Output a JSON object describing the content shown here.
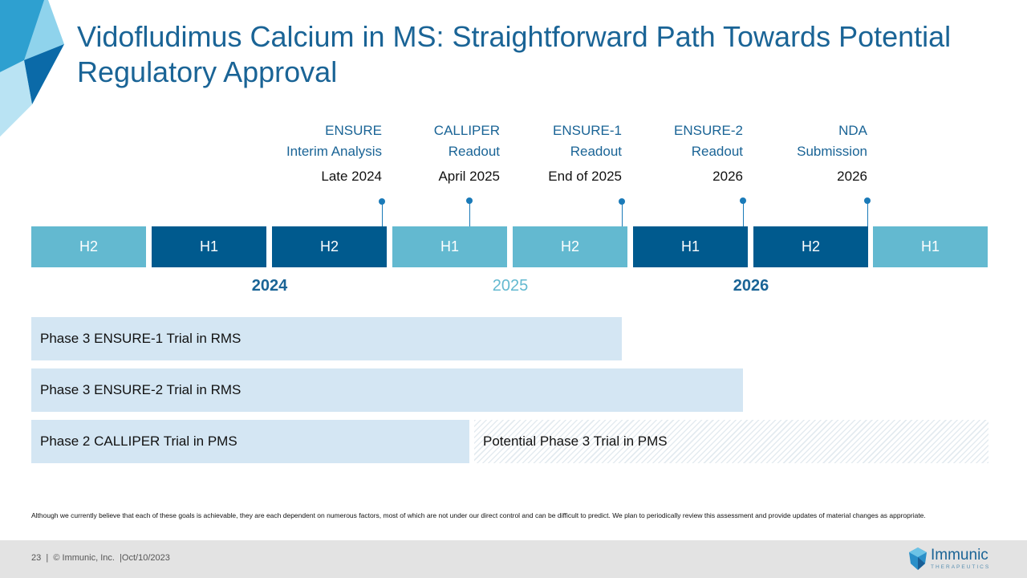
{
  "title": "Vidofludimus Calcium in MS: Straightforward Path Towards Potential Regulatory Approval",
  "milestones": [
    {
      "line1": "ENSURE",
      "line2": "Interim Analysis",
      "date": "Late 2024"
    },
    {
      "line1": "CALLIPER",
      "line2": "Readout",
      "date": "April 2025"
    },
    {
      "line1": "ENSURE-1",
      "line2": "Readout",
      "date": "End of 2025"
    },
    {
      "line1": "ENSURE-2",
      "line2": "Readout",
      "date": "2026"
    },
    {
      "line1": "NDA",
      "line2": "Submission",
      "date": "2026"
    }
  ],
  "halves": [
    "H2",
    "H1",
    "H2",
    "H1",
    "H2",
    "H1",
    "H2",
    "H1"
  ],
  "years": [
    "2024",
    "2025",
    "2026"
  ],
  "trials": [
    {
      "label": "Phase 3 ENSURE-1 Trial in RMS"
    },
    {
      "label": "Phase 3 ENSURE-2 Trial in RMS"
    },
    {
      "label": "Phase 2 CALLIPER Trial in PMS"
    },
    {
      "label": "Potential Phase 3 Trial in PMS"
    }
  ],
  "disclaimer": "Although we currently believe that each of these goals is achievable, they are each dependent on numerous factors, most of which are not under our direct control and can be difficult to predict. We plan to periodically review this assessment and provide updates of material changes as appropriate.",
  "footer": {
    "page": "23",
    "sep1": "|",
    "company": "© Immunic, Inc.",
    "sep2": "|",
    "date": "Oct/10/2023"
  },
  "logo": {
    "name": "Immunic",
    "sub": "THERAPEUTICS"
  },
  "colors": {
    "title": "#1a6496",
    "dark": "#005a8e",
    "light": "#63b9d0",
    "trial": "#d4e6f3",
    "year_2024": "#1a6496",
    "year_2025": "#63b9d0",
    "year_2026": "#1a6496"
  }
}
